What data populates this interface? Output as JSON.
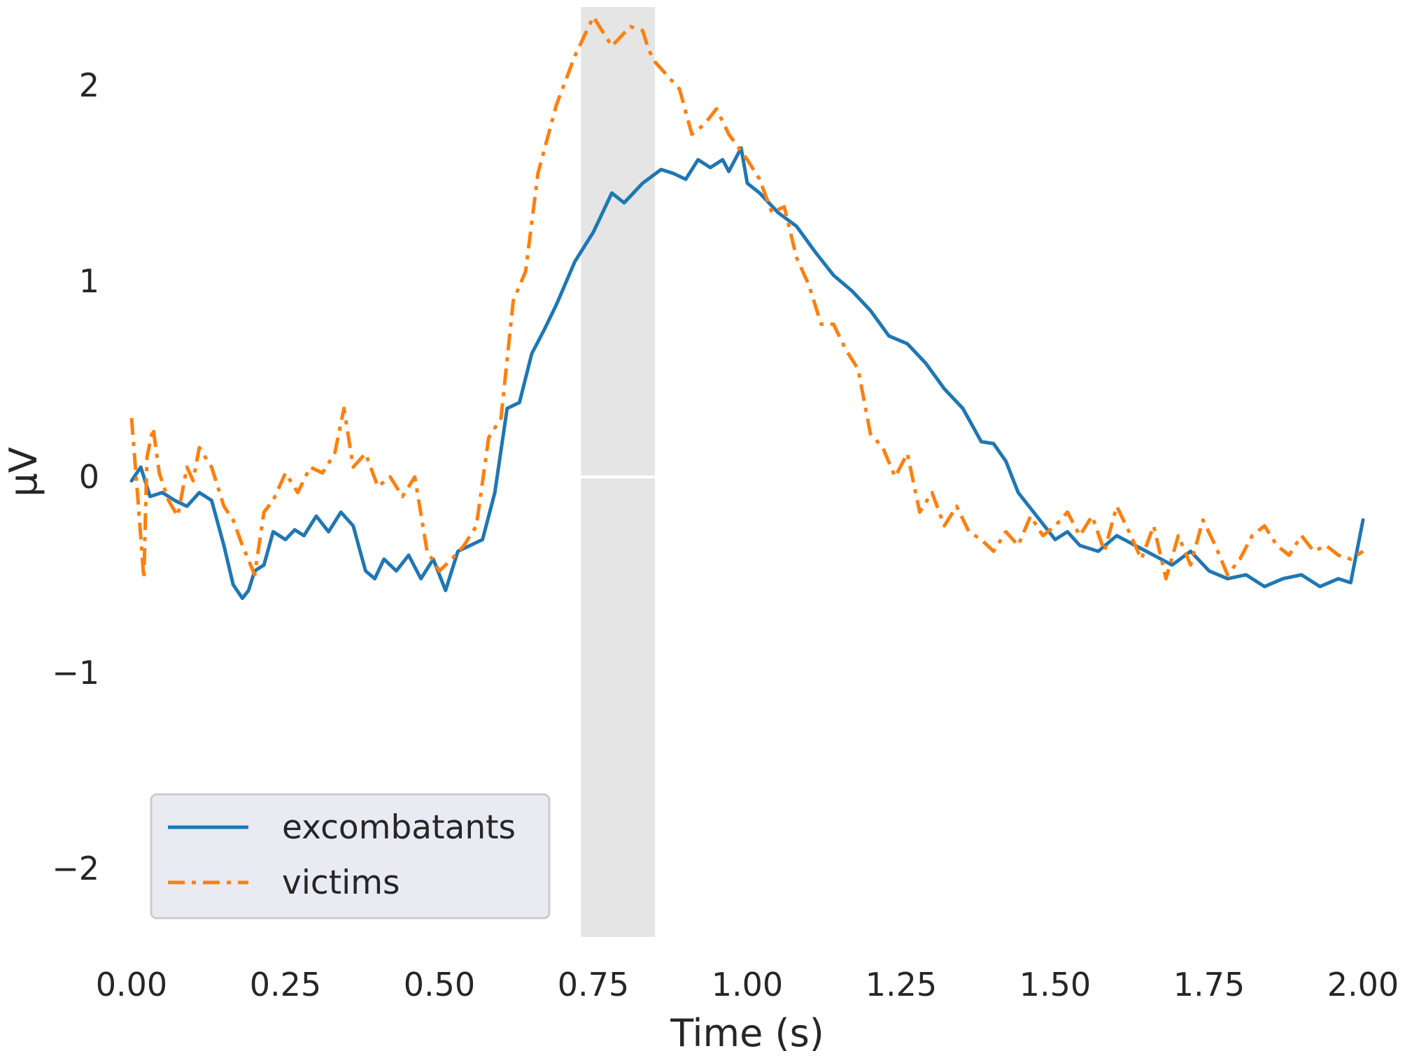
{
  "chart_data": {
    "type": "line",
    "title": "",
    "xlabel": "Time (s)",
    "ylabel": "µV",
    "xlim": [
      0.0,
      2.0
    ],
    "ylim": [
      -2.35,
      2.4
    ],
    "xticks": [
      0.0,
      0.25,
      0.5,
      0.75,
      1.0,
      1.25,
      1.5,
      1.75,
      2.0
    ],
    "xtick_labels": [
      "0.00",
      "0.25",
      "0.50",
      "0.75",
      "1.00",
      "1.25",
      "1.50",
      "1.75",
      "2.00"
    ],
    "yticks": [
      -2,
      -1,
      0,
      1,
      2
    ],
    "ytick_labels": [
      "−2",
      "−1",
      "0",
      "1",
      "2"
    ],
    "grid": true,
    "legend_position": "lower-left",
    "highlight_span": [
      0.73,
      0.85
    ],
    "series": [
      {
        "name": "excombatants",
        "color": "#1f77b4",
        "style": "solid",
        "x": [
          0.0,
          0.015,
          0.03,
          0.05,
          0.07,
          0.09,
          0.11,
          0.13,
          0.15,
          0.165,
          0.18,
          0.19,
          0.2,
          0.215,
          0.23,
          0.25,
          0.265,
          0.28,
          0.3,
          0.32,
          0.34,
          0.36,
          0.38,
          0.395,
          0.41,
          0.43,
          0.45,
          0.47,
          0.49,
          0.51,
          0.53,
          0.55,
          0.57,
          0.59,
          0.61,
          0.63,
          0.65,
          0.67,
          0.69,
          0.72,
          0.75,
          0.78,
          0.8,
          0.83,
          0.86,
          0.88,
          0.9,
          0.92,
          0.94,
          0.96,
          0.97,
          0.99,
          1.0,
          1.02,
          1.05,
          1.08,
          1.11,
          1.14,
          1.17,
          1.2,
          1.23,
          1.26,
          1.29,
          1.32,
          1.35,
          1.38,
          1.4,
          1.42,
          1.44,
          1.47,
          1.5,
          1.52,
          1.54,
          1.57,
          1.6,
          1.63,
          1.66,
          1.69,
          1.72,
          1.75,
          1.78,
          1.81,
          1.84,
          1.87,
          1.9,
          1.93,
          1.96,
          1.98,
          2.0
        ],
        "values": [
          -0.02,
          0.05,
          -0.1,
          -0.08,
          -0.12,
          -0.15,
          -0.08,
          -0.12,
          -0.35,
          -0.55,
          -0.62,
          -0.58,
          -0.48,
          -0.45,
          -0.28,
          -0.32,
          -0.27,
          -0.3,
          -0.2,
          -0.28,
          -0.18,
          -0.25,
          -0.48,
          -0.52,
          -0.42,
          -0.48,
          -0.4,
          -0.52,
          -0.42,
          -0.58,
          -0.38,
          -0.35,
          -0.32,
          -0.08,
          0.35,
          0.38,
          0.63,
          0.75,
          0.88,
          1.1,
          1.25,
          1.45,
          1.4,
          1.5,
          1.57,
          1.55,
          1.52,
          1.62,
          1.58,
          1.62,
          1.56,
          1.68,
          1.5,
          1.45,
          1.35,
          1.28,
          1.15,
          1.03,
          0.95,
          0.85,
          0.72,
          0.68,
          0.58,
          0.45,
          0.35,
          0.18,
          0.17,
          0.08,
          -0.08,
          -0.2,
          -0.32,
          -0.28,
          -0.35,
          -0.38,
          -0.3,
          -0.35,
          -0.4,
          -0.45,
          -0.38,
          -0.48,
          -0.52,
          -0.5,
          -0.56,
          -0.52,
          -0.5,
          -0.56,
          -0.52,
          -0.54,
          -0.22
        ]
      },
      {
        "name": "victims",
        "color": "#ff7f0e",
        "style": "dashdot",
        "x": [
          0.0,
          0.01,
          0.02,
          0.025,
          0.035,
          0.045,
          0.06,
          0.075,
          0.09,
          0.1,
          0.11,
          0.13,
          0.15,
          0.165,
          0.18,
          0.2,
          0.215,
          0.23,
          0.25,
          0.27,
          0.29,
          0.31,
          0.33,
          0.345,
          0.36,
          0.38,
          0.4,
          0.42,
          0.44,
          0.46,
          0.48,
          0.5,
          0.52,
          0.54,
          0.56,
          0.58,
          0.6,
          0.62,
          0.64,
          0.66,
          0.69,
          0.72,
          0.75,
          0.78,
          0.81,
          0.83,
          0.84,
          0.85,
          0.87,
          0.89,
          0.91,
          0.93,
          0.95,
          0.97,
          1.0,
          1.02,
          1.04,
          1.06,
          1.08,
          1.1,
          1.12,
          1.14,
          1.16,
          1.18,
          1.2,
          1.22,
          1.24,
          1.26,
          1.28,
          1.3,
          1.32,
          1.34,
          1.36,
          1.38,
          1.4,
          1.42,
          1.44,
          1.46,
          1.48,
          1.5,
          1.52,
          1.54,
          1.56,
          1.58,
          1.6,
          1.62,
          1.64,
          1.66,
          1.68,
          1.7,
          1.72,
          1.74,
          1.76,
          1.78,
          1.8,
          1.82,
          1.84,
          1.86,
          1.88,
          1.9,
          1.92,
          1.94,
          1.96,
          1.98,
          2.0
        ],
        "values": [
          0.3,
          -0.1,
          -0.52,
          0.1,
          0.25,
          0.02,
          -0.12,
          -0.2,
          0.05,
          -0.02,
          0.15,
          0.05,
          -0.15,
          -0.22,
          -0.35,
          -0.5,
          -0.18,
          -0.12,
          0.02,
          -0.08,
          0.05,
          0.02,
          0.12,
          0.35,
          0.05,
          0.12,
          -0.05,
          0.0,
          -0.1,
          0.0,
          -0.38,
          -0.48,
          -0.42,
          -0.35,
          -0.25,
          0.2,
          0.3,
          0.9,
          1.05,
          1.55,
          1.9,
          2.15,
          2.35,
          2.2,
          2.3,
          2.28,
          2.18,
          2.12,
          2.05,
          1.98,
          1.75,
          1.8,
          1.88,
          1.75,
          1.62,
          1.52,
          1.35,
          1.38,
          1.12,
          0.98,
          0.78,
          0.78,
          0.65,
          0.55,
          0.22,
          0.15,
          0.0,
          0.12,
          -0.18,
          -0.08,
          -0.25,
          -0.15,
          -0.28,
          -0.32,
          -0.38,
          -0.28,
          -0.35,
          -0.2,
          -0.3,
          -0.25,
          -0.18,
          -0.3,
          -0.2,
          -0.38,
          -0.15,
          -0.28,
          -0.42,
          -0.25,
          -0.52,
          -0.3,
          -0.45,
          -0.22,
          -0.35,
          -0.5,
          -0.42,
          -0.3,
          -0.25,
          -0.35,
          -0.4,
          -0.3,
          -0.38,
          -0.35,
          -0.4,
          -0.42,
          -0.38
        ]
      }
    ]
  }
}
